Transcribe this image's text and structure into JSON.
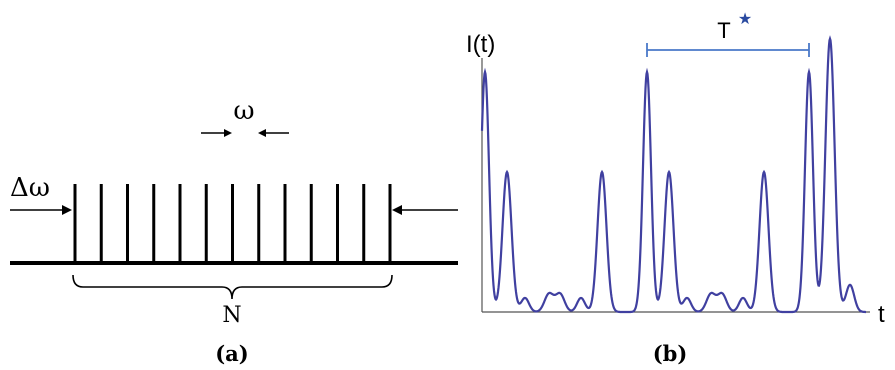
{
  "panel_a": {
    "omega_label": "ω",
    "delta_omega_label": "Δω",
    "n_label": "N",
    "caption": "(a)",
    "line_count": 13
  },
  "panel_b": {
    "y_axis_label": "I(t)",
    "x_axis_label": "t",
    "period_label": "T",
    "period_marker": "★",
    "caption": "(b)",
    "curve_color": "#4040a0",
    "period_bar_color": "#4a78c8"
  }
}
